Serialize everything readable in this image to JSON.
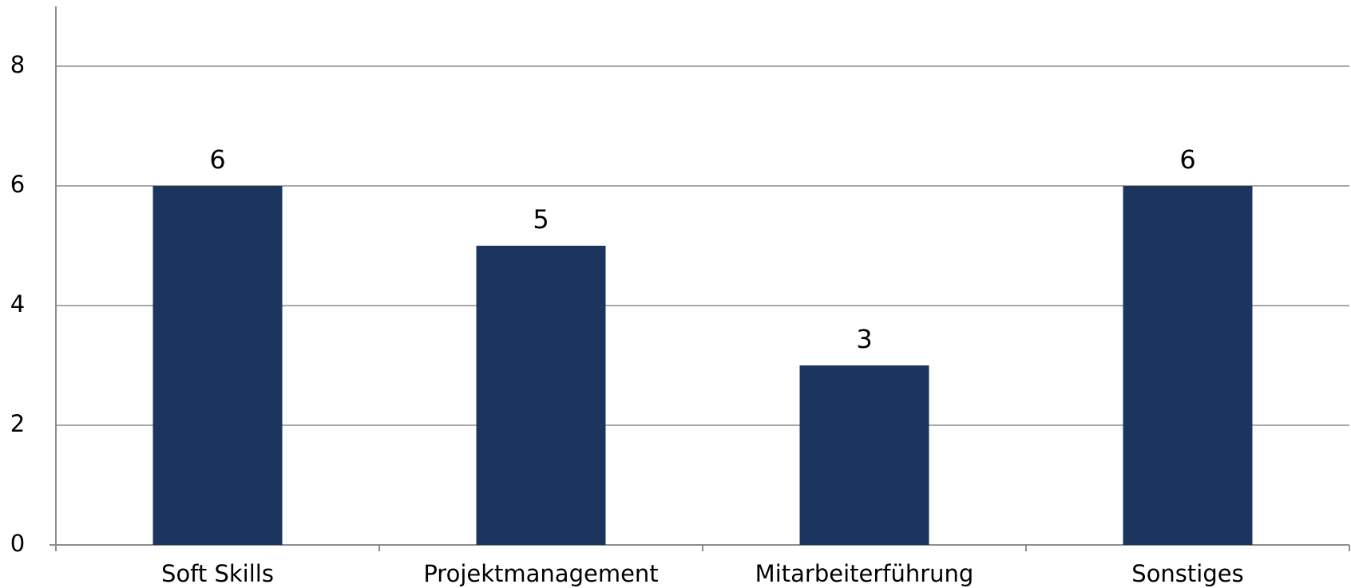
{
  "chart_data": {
    "type": "bar",
    "categories": [
      "Soft Skills",
      "Projektmanagement",
      "Mitarbeiterführung",
      "Sonstiges"
    ],
    "values": [
      6,
      5,
      3,
      6
    ],
    "color": "#1c355e",
    "ylim": [
      0,
      9
    ],
    "yticks": [
      0,
      2,
      4,
      6,
      8
    ],
    "grid": true
  }
}
